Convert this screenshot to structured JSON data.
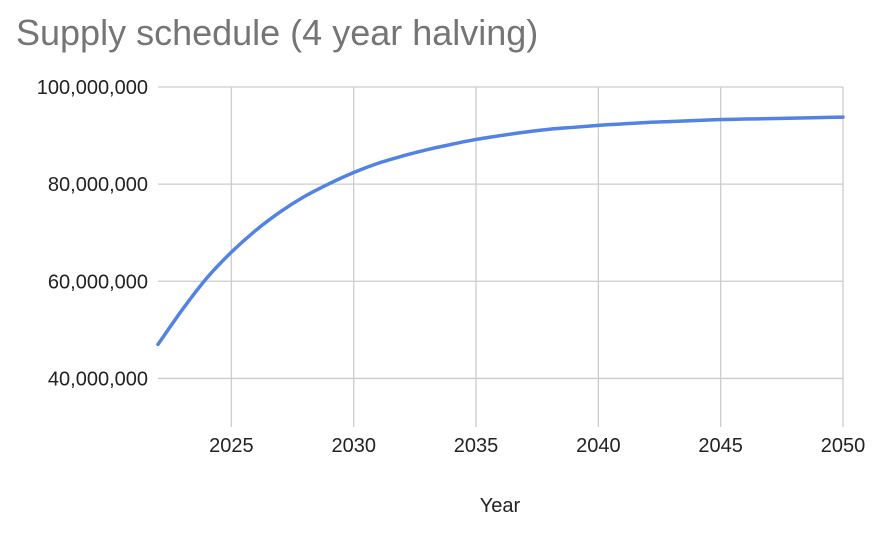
{
  "chart_data": {
    "type": "line",
    "title": "Supply schedule (4 year halving)",
    "xlabel": "Year",
    "ylabel": "",
    "xlim": [
      2022,
      2050
    ],
    "ylim": [
      30000000,
      100000000
    ],
    "x_ticks": [
      2025,
      2030,
      2035,
      2040,
      2045,
      2050
    ],
    "x_tick_labels": [
      "2025",
      "2030",
      "2035",
      "2040",
      "2045",
      "2050"
    ],
    "y_ticks": [
      40000000,
      60000000,
      80000000,
      100000000
    ],
    "y_tick_labels": [
      "40,000,000",
      "60,000,000",
      "80,000,000",
      "100,000,000"
    ],
    "grid": true,
    "legend": "none",
    "series": [
      {
        "color": "#5282e3",
        "x": [
          2022,
          2023,
          2024,
          2025,
          2026,
          2027,
          2028,
          2029,
          2030,
          2031,
          2032,
          2033,
          2034,
          2035,
          2036,
          2037,
          2038,
          2039,
          2040,
          2041,
          2042,
          2043,
          2044,
          2045,
          2046,
          2047,
          2048,
          2049,
          2050
        ],
        "y": [
          47000000,
          54200000,
          60700000,
          66000000,
          70500000,
          74300000,
          77500000,
          80100000,
          82400000,
          84300000,
          85800000,
          87100000,
          88200000,
          89200000,
          90000000,
          90700000,
          91300000,
          91700000,
          92100000,
          92400000,
          92700000,
          92900000,
          93100000,
          93300000,
          93400000,
          93500000,
          93600000,
          93700000,
          93800000
        ]
      }
    ]
  }
}
